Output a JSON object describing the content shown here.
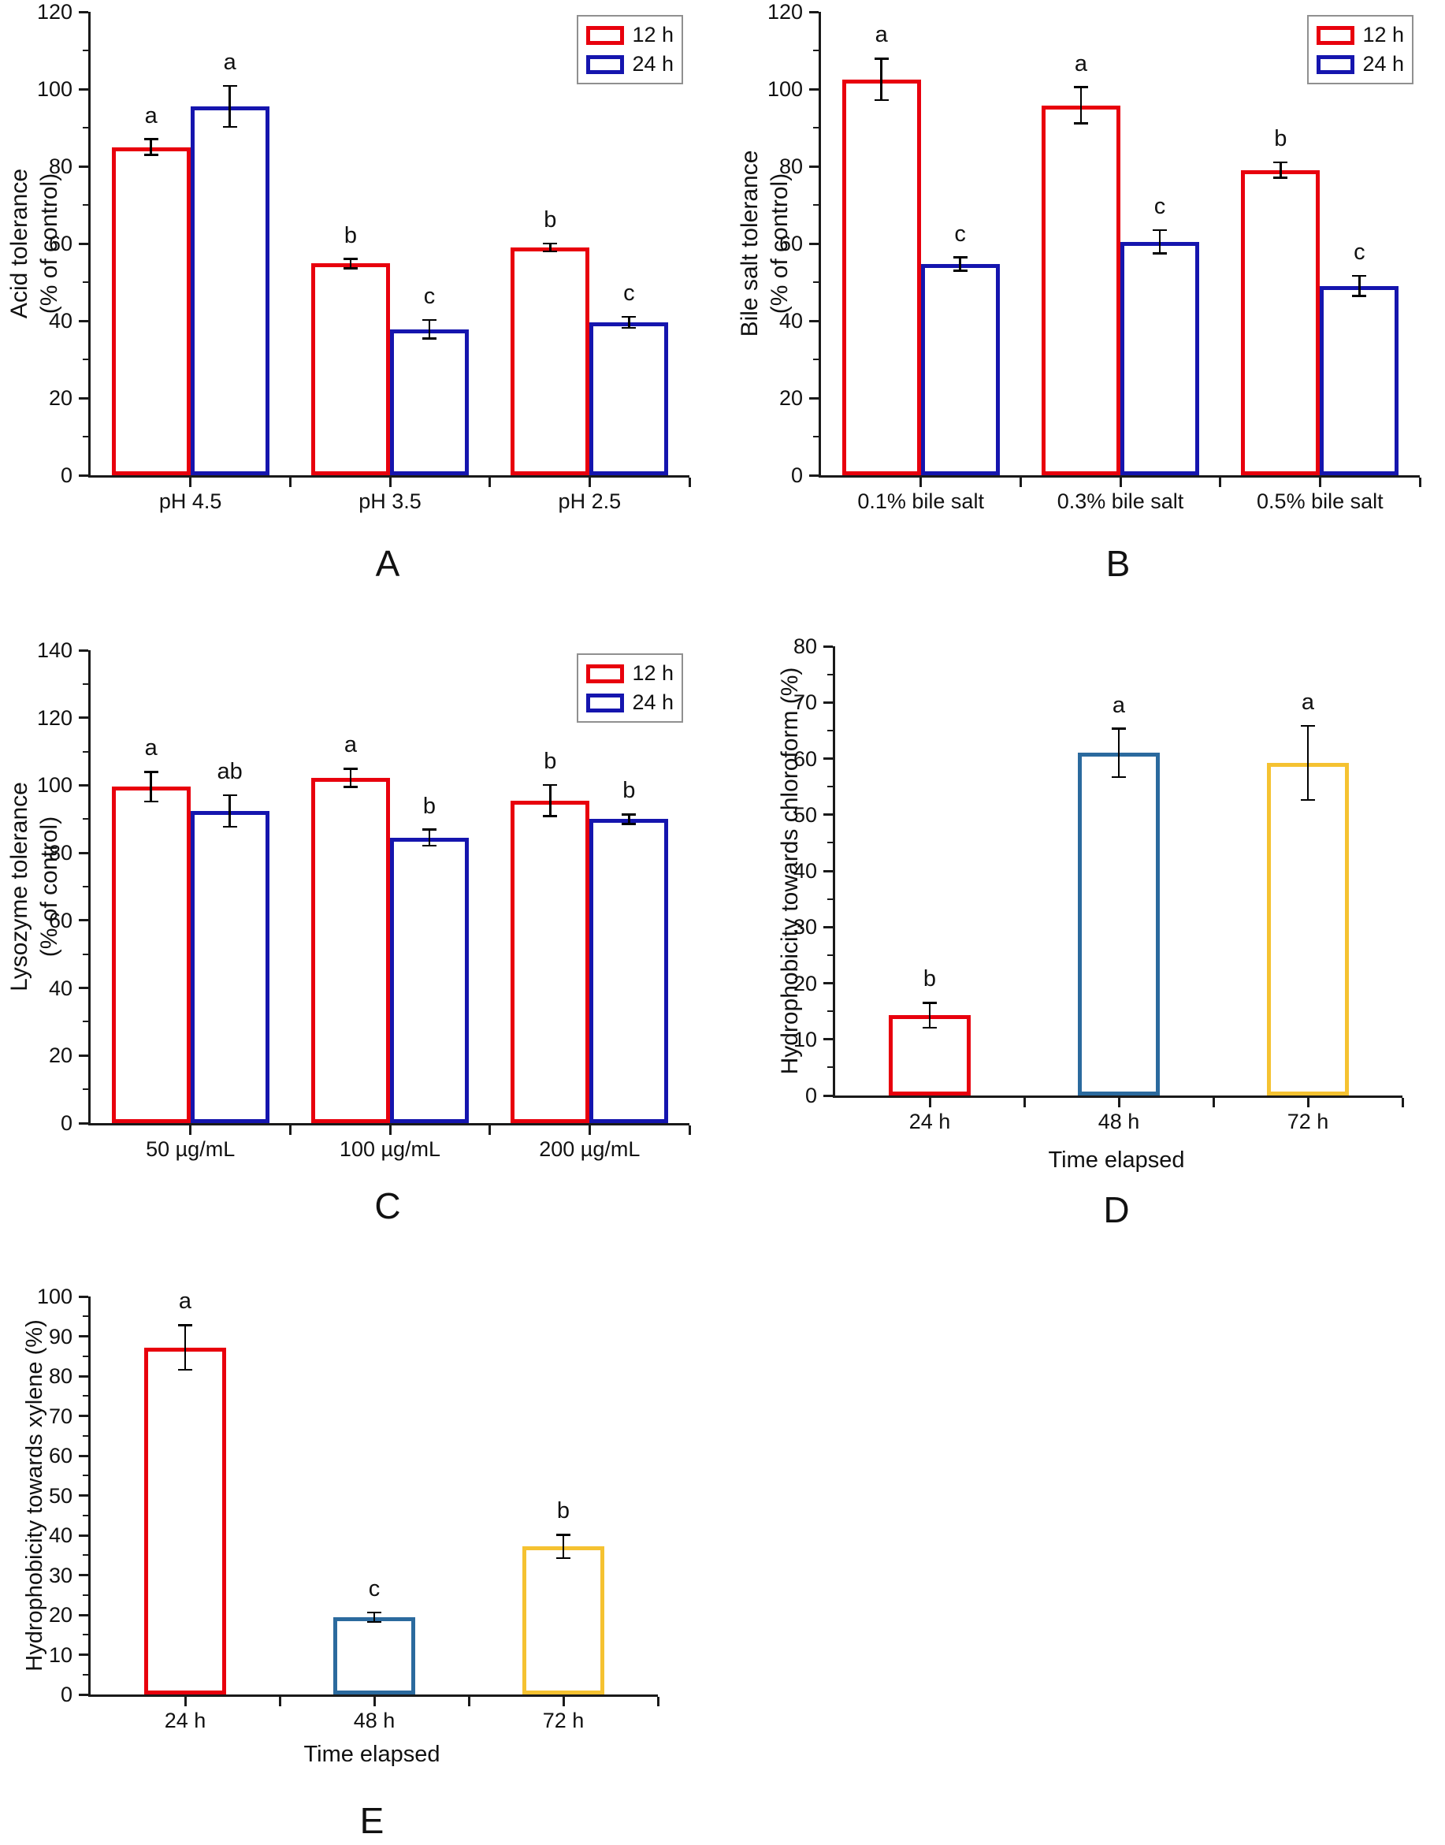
{
  "chart_data": [
    {
      "id": "A",
      "panel_label": "A",
      "type": "bar",
      "ylabel": [
        "Acid tolerance",
        "(% of control)"
      ],
      "xlabel": "",
      "categories": [
        "pH 4.5",
        "pH 3.5",
        "pH 2.5"
      ],
      "series": [
        {
          "name": "12 h",
          "color": "#e8000d",
          "values": [
            85,
            54.8,
            59
          ],
          "errors": [
            2,
            1.2,
            1
          ],
          "letters": [
            "a",
            "b",
            "b"
          ]
        },
        {
          "name": "24 h",
          "color": "#1515ae",
          "values": [
            95.5,
            37.8,
            39.6
          ],
          "errors": [
            5.3,
            2.4,
            1.4
          ],
          "letters": [
            "a",
            "c",
            "c"
          ]
        }
      ],
      "ylim": [
        0,
        120
      ],
      "ytick_step": 20,
      "yminor_step": 10,
      "grid": false,
      "legend": {
        "show": true,
        "position": "top-right",
        "entries": [
          "12 h",
          "24 h"
        ]
      }
    },
    {
      "id": "B",
      "panel_label": "B",
      "type": "bar",
      "ylabel": [
        "Bile salt tolerance",
        "(% of control)"
      ],
      "xlabel": "",
      "categories": [
        "0.1% bile salt",
        "0.3% bile salt",
        "0.5% bile salt"
      ],
      "series": [
        {
          "name": "12 h",
          "color": "#e8000d",
          "values": [
            102.5,
            95.8,
            79
          ],
          "errors": [
            5.4,
            4.7,
            2
          ],
          "letters": [
            "a",
            "a",
            "b"
          ]
        },
        {
          "name": "24 h",
          "color": "#1515ae",
          "values": [
            54.7,
            60.5,
            49
          ],
          "errors": [
            1.7,
            3,
            2.6
          ],
          "letters": [
            "c",
            "c",
            "c"
          ]
        }
      ],
      "ylim": [
        0,
        120
      ],
      "ytick_step": 20,
      "yminor_step": 10,
      "grid": false,
      "legend": {
        "show": true,
        "position": "top-right",
        "entries": [
          "12 h",
          "24 h"
        ]
      }
    },
    {
      "id": "C",
      "panel_label": "C",
      "type": "bar",
      "ylabel": [
        "Lysozyme tolerance",
        "(% of control)"
      ],
      "xlabel": "",
      "categories": [
        "50 µg/mL",
        "100 µg/mL",
        "200 µg/mL"
      ],
      "series": [
        {
          "name": "12 h",
          "color": "#e8000d",
          "values": [
            99.6,
            102.2,
            95.5
          ],
          "errors": [
            4.4,
            2.7,
            4.6
          ],
          "letters": [
            "a",
            "a",
            "b"
          ]
        },
        {
          "name": "24 h",
          "color": "#1515ae",
          "values": [
            92.4,
            84.5,
            90
          ],
          "errors": [
            4.7,
            2.4,
            1.4
          ],
          "letters": [
            "ab",
            "b",
            "b"
          ]
        }
      ],
      "ylim": [
        0,
        140
      ],
      "ytick_step": 20,
      "yminor_step": 10,
      "grid": false,
      "legend": {
        "show": true,
        "position": "top-right",
        "entries": [
          "12 h",
          "24 h"
        ]
      }
    },
    {
      "id": "D",
      "panel_label": "D",
      "type": "bar",
      "ylabel": [
        "Hydrophobicity towards chloroform (%)"
      ],
      "xlabel": "Time elapsed",
      "categories": [
        "24 h",
        "48 h",
        "72 h"
      ],
      "series": [
        {
          "name": "",
          "colors": [
            "#e8000d",
            "#2b6a9e",
            "#f5c231"
          ],
          "values": [
            14.3,
            61,
            59.2
          ],
          "errors": [
            2.2,
            4.3,
            6.6
          ],
          "letters": [
            "b",
            "a",
            "a"
          ]
        }
      ],
      "ylim": [
        0,
        80
      ],
      "ytick_step": 10,
      "yminor_step": 5,
      "grid": false,
      "legend": {
        "show": false
      }
    },
    {
      "id": "E",
      "panel_label": "E",
      "type": "bar",
      "ylabel": [
        "Hydrophobicity towards xylene (%)"
      ],
      "xlabel": "Time elapsed",
      "categories": [
        "24 h",
        "48 h",
        "72 h"
      ],
      "series": [
        {
          "name": "",
          "colors": [
            "#e8000d",
            "#2b6a9e",
            "#f5c231"
          ],
          "values": [
            87.2,
            19.4,
            37.2
          ],
          "errors": [
            5.6,
            1.2,
            2.9
          ],
          "letters": [
            "a",
            "c",
            "b"
          ]
        }
      ],
      "ylim": [
        0,
        100
      ],
      "ytick_step": 10,
      "yminor_step": 5,
      "grid": false,
      "legend": {
        "show": false
      }
    }
  ]
}
